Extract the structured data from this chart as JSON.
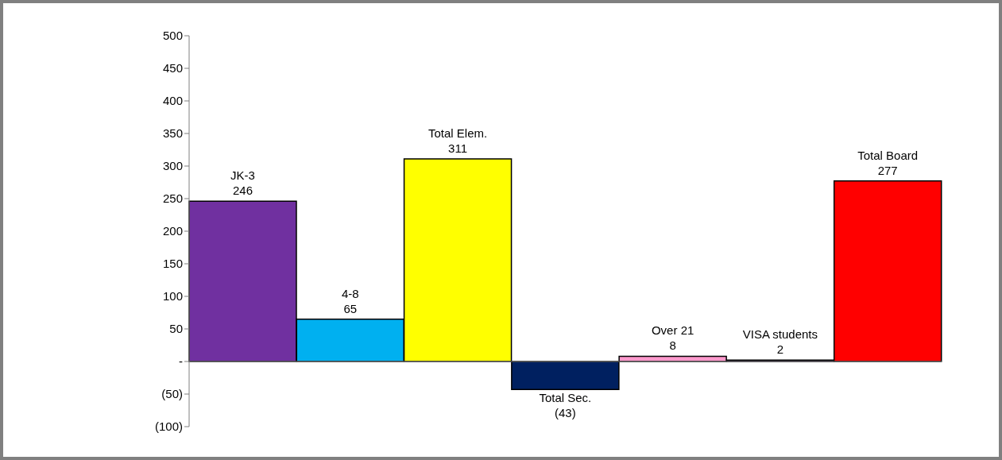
{
  "chart_data": {
    "type": "bar",
    "categories": [
      "JK-3",
      "4-8",
      "Total Elem.",
      "Total Sec.",
      "Over 21",
      "VISA students",
      "Total Board"
    ],
    "values": [
      246,
      65,
      311,
      -43,
      8,
      2,
      277
    ],
    "colors": [
      "#7030a0",
      "#00b0f0",
      "#ffff00",
      "#002060",
      "#ff99cc",
      "#7030a0",
      "#ff0000"
    ],
    "value_labels": [
      "246",
      "65",
      "311",
      "(43)",
      "8",
      "2",
      "277"
    ],
    "ylim": [
      -100,
      500
    ],
    "yticks": [
      {
        "value": -100,
        "label": "(100)"
      },
      {
        "value": -50,
        "label": "(50)"
      },
      {
        "value": 0,
        "label": "-"
      },
      50,
      100,
      150,
      200,
      250,
      300,
      350,
      400,
      450,
      500
    ]
  }
}
